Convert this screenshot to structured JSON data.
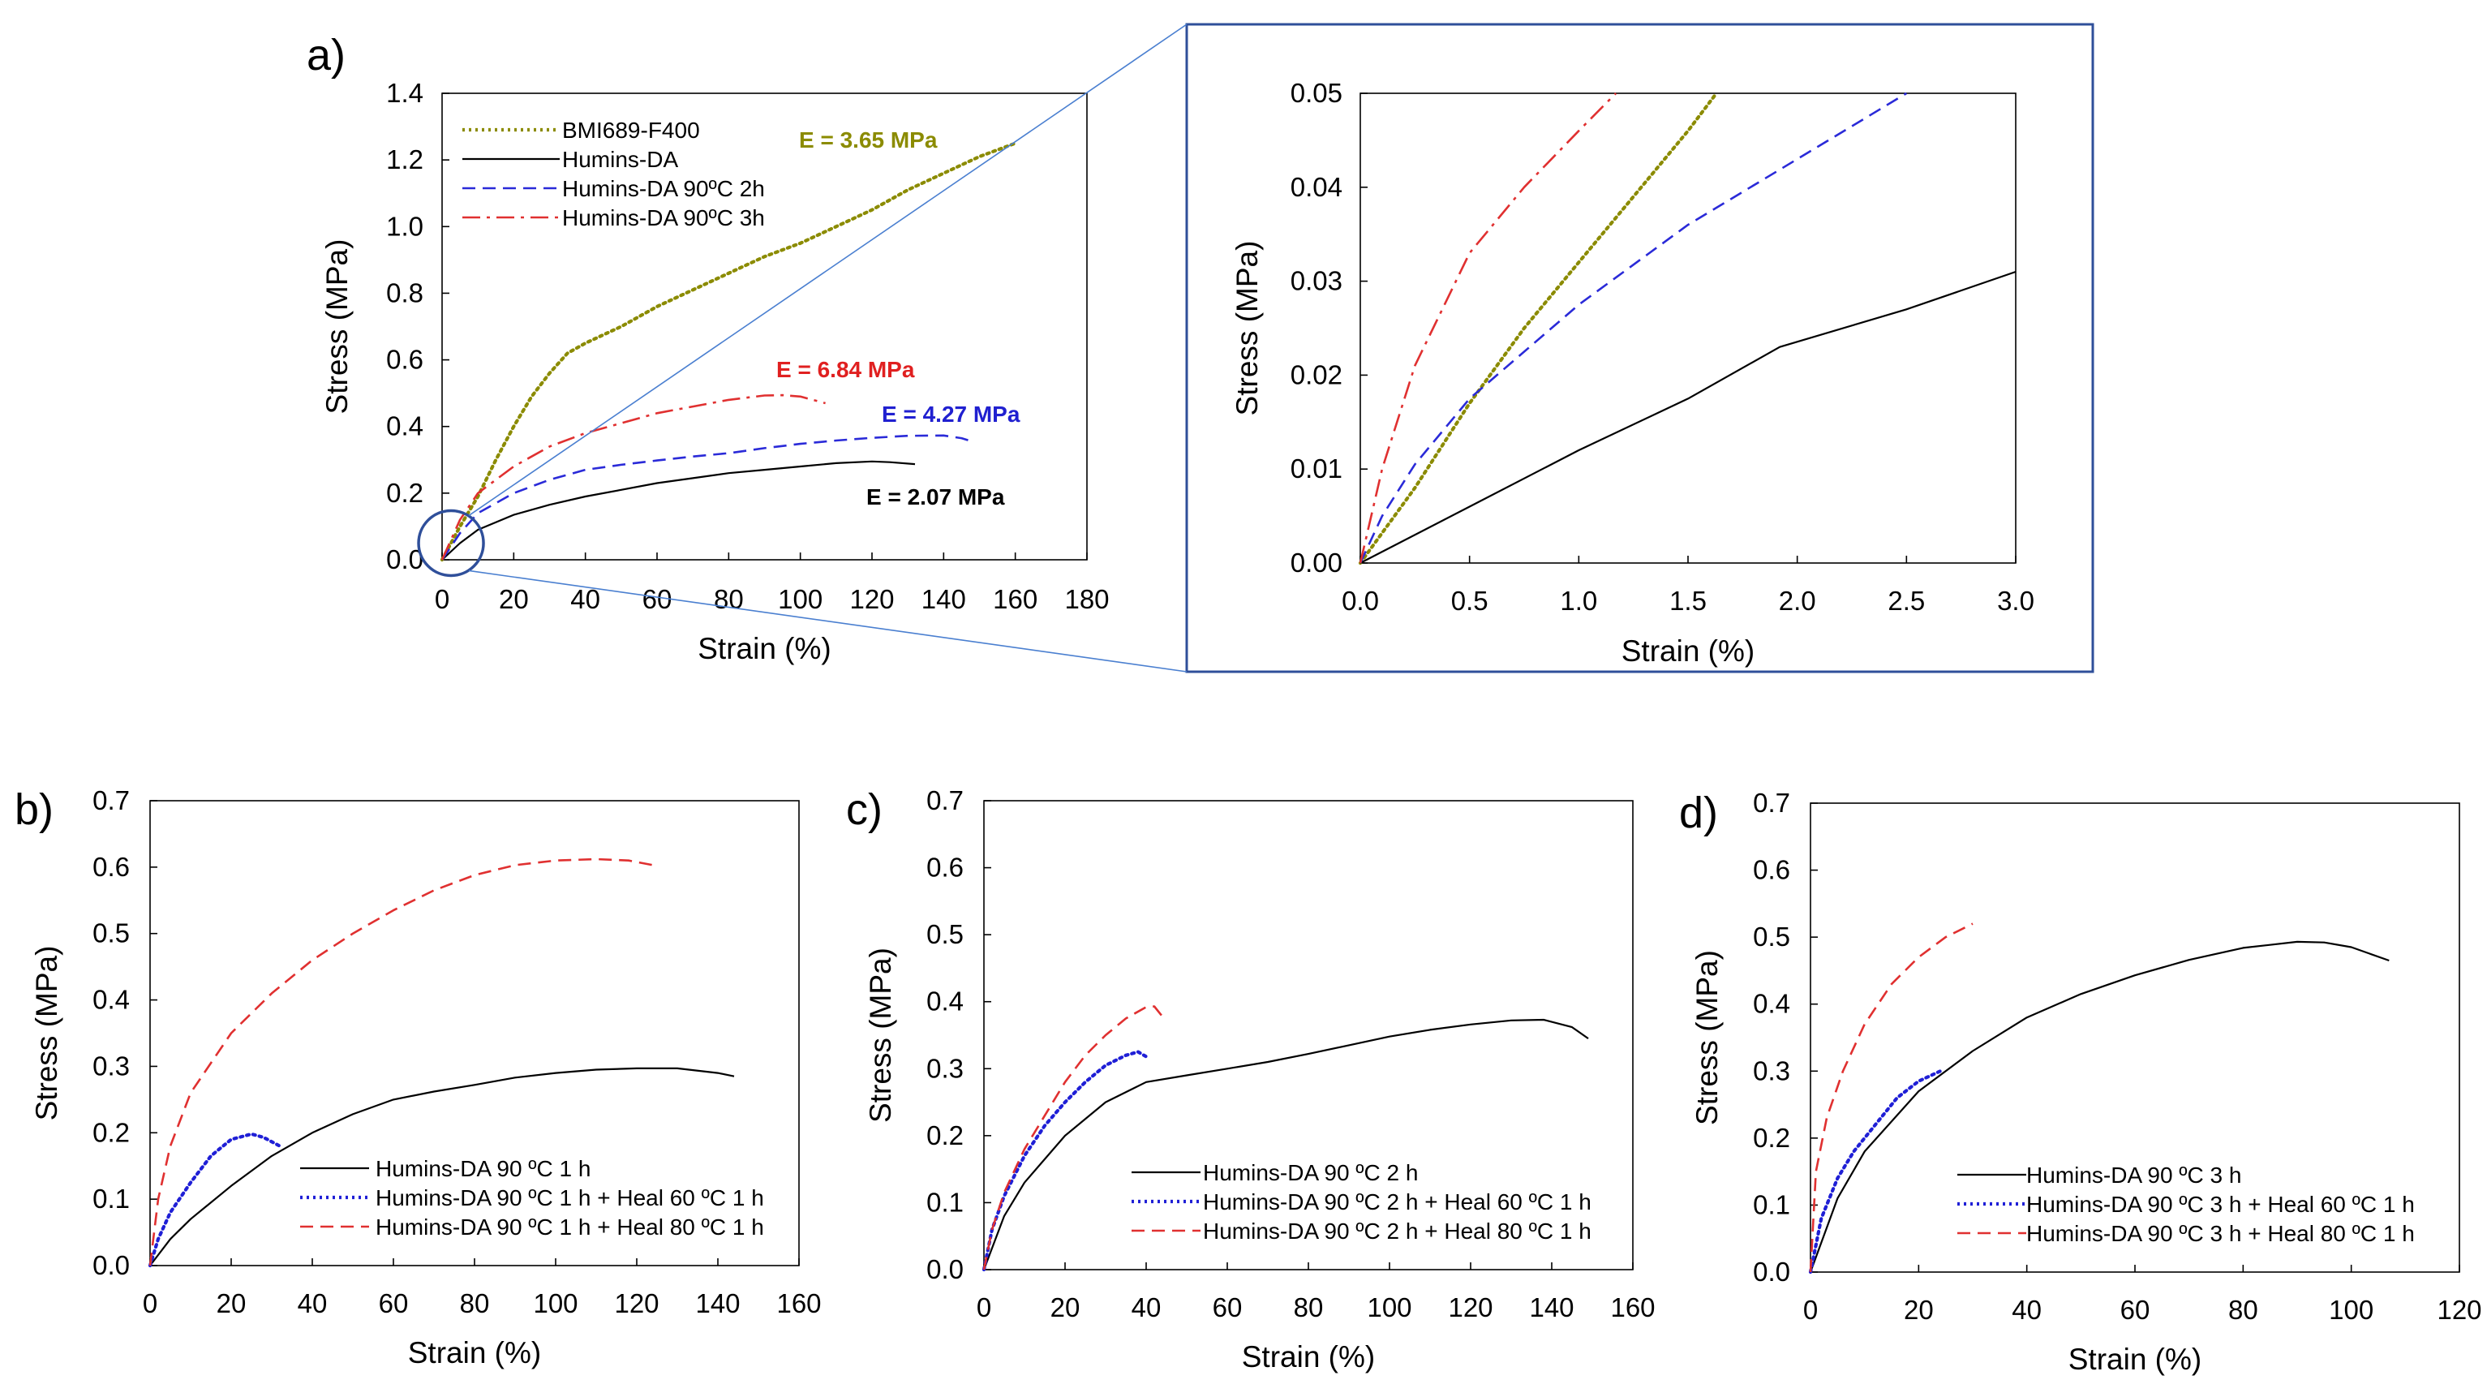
{
  "chart_data": [
    {
      "id": "a_main",
      "type": "line",
      "panel_label": "a)",
      "xlabel": "Strain (%)",
      "ylabel": "Stress (MPa)",
      "xlim": [
        0,
        180
      ],
      "ylim": [
        0,
        1.4
      ],
      "xticks": [
        "0",
        "20",
        "40",
        "60",
        "80",
        "100",
        "120",
        "140",
        "160",
        "180"
      ],
      "yticks": [
        "0.0",
        "0.2",
        "0.4",
        "0.6",
        "0.8",
        "1.0",
        "1.2",
        "1.4"
      ],
      "legend_position": "top-left",
      "series": [
        {
          "name": "BMI689-F400",
          "color": "#8b8b00",
          "style": "dotted",
          "x": [
            0,
            5,
            10,
            15,
            20,
            25,
            30,
            35,
            40,
            50,
            60,
            70,
            80,
            90,
            100,
            110,
            120,
            130,
            140,
            150,
            160
          ],
          "y": [
            0,
            0.1,
            0.19,
            0.3,
            0.4,
            0.49,
            0.56,
            0.62,
            0.65,
            0.7,
            0.76,
            0.81,
            0.86,
            0.91,
            0.95,
            1.0,
            1.05,
            1.11,
            1.16,
            1.21,
            1.25
          ]
        },
        {
          "name": "Humins-DA",
          "color": "#000000",
          "style": "solid",
          "x": [
            0,
            5,
            10,
            20,
            30,
            40,
            50,
            60,
            70,
            80,
            90,
            100,
            110,
            120,
            125,
            132
          ],
          "y": [
            0,
            0.05,
            0.09,
            0.135,
            0.165,
            0.19,
            0.21,
            0.23,
            0.245,
            0.26,
            0.27,
            0.28,
            0.29,
            0.295,
            0.293,
            0.287
          ]
        },
        {
          "name": "Humins-DA 90ºC 2h",
          "color": "#2a2ad8",
          "style": "dashed",
          "x": [
            0,
            5,
            10,
            20,
            30,
            40,
            50,
            60,
            70,
            80,
            90,
            100,
            110,
            120,
            130,
            140,
            145,
            148
          ],
          "y": [
            0,
            0.08,
            0.14,
            0.2,
            0.24,
            0.27,
            0.285,
            0.298,
            0.31,
            0.32,
            0.335,
            0.348,
            0.358,
            0.366,
            0.372,
            0.373,
            0.365,
            0.355
          ]
        },
        {
          "name": "Humins-DA 90ºC 3h",
          "color": "#e03030",
          "style": "dashdot",
          "x": [
            0,
            5,
            10,
            20,
            30,
            40,
            50,
            60,
            70,
            80,
            90,
            95,
            100,
            107
          ],
          "y": [
            0,
            0.12,
            0.2,
            0.28,
            0.34,
            0.38,
            0.41,
            0.44,
            0.46,
            0.48,
            0.493,
            0.494,
            0.49,
            0.47
          ]
        }
      ],
      "annotations": [
        {
          "text": "E = 3.65 MPa",
          "color": "#8b8b00"
        },
        {
          "text": "E = 6.84 MPa",
          "color": "#e02020"
        },
        {
          "text": "E = 4.27 MPa",
          "color": "#2020d0"
        },
        {
          "text": "E = 2.07 MPa",
          "color": "#000000"
        }
      ]
    },
    {
      "id": "a_inset",
      "type": "line",
      "panel_label": "",
      "xlabel": "Strain (%)",
      "ylabel": "Stress (MPa)",
      "xlim": [
        0,
        3
      ],
      "ylim": [
        0,
        0.05
      ],
      "xticks": [
        "0.0",
        "0.5",
        "1.0",
        "1.5",
        "2.0",
        "2.5",
        "3.0"
      ],
      "yticks": [
        "0.00",
        "0.01",
        "0.02",
        "0.03",
        "0.04",
        "0.05"
      ],
      "series": [
        {
          "name": "BMI689-F400",
          "color": "#8b8b00",
          "style": "dotted",
          "x": [
            0,
            0.25,
            0.5,
            0.75,
            1.0,
            1.25,
            1.5,
            1.63
          ],
          "y": [
            0,
            0.008,
            0.017,
            0.025,
            0.032,
            0.039,
            0.046,
            0.05
          ]
        },
        {
          "name": "Humins-DA",
          "color": "#000000",
          "style": "solid",
          "x": [
            0,
            0.5,
            1.0,
            1.5,
            1.92,
            2.5,
            3.0
          ],
          "y": [
            0,
            0.006,
            0.012,
            0.0175,
            0.023,
            0.027,
            0.031
          ]
        },
        {
          "name": "Humins-DA 90ºC 2h",
          "color": "#2a2ad8",
          "style": "dashed",
          "x": [
            0,
            0.1,
            0.25,
            0.5,
            1.0,
            1.5,
            2.0,
            2.5
          ],
          "y": [
            0,
            0.005,
            0.0105,
            0.0175,
            0.0275,
            0.036,
            0.043,
            0.05
          ]
        },
        {
          "name": "Humins-DA 90ºC 3h",
          "color": "#e03030",
          "style": "dashdot",
          "x": [
            0,
            0.1,
            0.25,
            0.5,
            0.75,
            1.0,
            1.17
          ],
          "y": [
            0,
            0.01,
            0.021,
            0.033,
            0.04,
            0.046,
            0.05
          ]
        }
      ]
    },
    {
      "id": "b",
      "type": "line",
      "panel_label": "b)",
      "xlabel": "Strain (%)",
      "ylabel": "Stress (MPa)",
      "xlim": [
        0,
        160
      ],
      "ylim": [
        0,
        0.7
      ],
      "xticks": [
        "0",
        "20",
        "40",
        "60",
        "80",
        "100",
        "120",
        "140",
        "160"
      ],
      "yticks": [
        "0.0",
        "0.1",
        "0.2",
        "0.3",
        "0.4",
        "0.5",
        "0.6",
        "0.7"
      ],
      "legend_position": "bottom-right",
      "series": [
        {
          "name": "Humins-DA 90 ºC 1 h",
          "color": "#000000",
          "style": "solid",
          "x": [
            0,
            5,
            10,
            20,
            30,
            40,
            50,
            60,
            70,
            80,
            90,
            100,
            110,
            120,
            130,
            140,
            144
          ],
          "y": [
            0,
            0.04,
            0.07,
            0.12,
            0.165,
            0.2,
            0.228,
            0.25,
            0.262,
            0.272,
            0.283,
            0.29,
            0.295,
            0.297,
            0.297,
            0.29,
            0.285
          ]
        },
        {
          "name": "Humins-DA 90 ºC 1 h + Heal 60 ºC 1 h",
          "color": "#1f1fd6",
          "style": "dotted",
          "x": [
            0,
            2,
            5,
            10,
            15,
            20,
            25,
            28,
            32
          ],
          "y": [
            0,
            0.04,
            0.08,
            0.125,
            0.165,
            0.19,
            0.198,
            0.193,
            0.18
          ]
        },
        {
          "name": "Humins-DA 90 ºC 1 h + Heal 80 ºC 1 h",
          "color": "#e03030",
          "style": "dashed",
          "x": [
            0,
            2,
            5,
            10,
            20,
            30,
            40,
            50,
            60,
            70,
            80,
            90,
            100,
            110,
            118,
            124
          ],
          "y": [
            0,
            0.1,
            0.18,
            0.26,
            0.35,
            0.41,
            0.46,
            0.5,
            0.535,
            0.565,
            0.588,
            0.603,
            0.61,
            0.612,
            0.61,
            0.603
          ]
        }
      ]
    },
    {
      "id": "c",
      "type": "line",
      "panel_label": "c)",
      "xlabel": "Strain (%)",
      "ylabel": "Stress (MPa)",
      "xlim": [
        0,
        160
      ],
      "ylim": [
        0,
        0.7
      ],
      "xticks": [
        "0",
        "20",
        "40",
        "60",
        "80",
        "100",
        "120",
        "140",
        "160"
      ],
      "yticks": [
        "0.0",
        "0.1",
        "0.2",
        "0.3",
        "0.4",
        "0.5",
        "0.6",
        "0.7"
      ],
      "legend_position": "bottom-right",
      "series": [
        {
          "name": "Humins-DA 90 ºC 2 h",
          "color": "#000000",
          "style": "solid",
          "x": [
            0,
            5,
            10,
            20,
            30,
            40,
            50,
            60,
            70,
            80,
            90,
            100,
            110,
            120,
            130,
            138,
            145,
            149
          ],
          "y": [
            0,
            0.08,
            0.13,
            0.2,
            0.25,
            0.28,
            0.29,
            0.3,
            0.31,
            0.322,
            0.335,
            0.348,
            0.358,
            0.366,
            0.372,
            0.373,
            0.362,
            0.345
          ]
        },
        {
          "name": "Humins-DA 90 ºC 2 h + Heal 60 ºC 1 h",
          "color": "#1f1fd6",
          "style": "dotted",
          "x": [
            0,
            2,
            5,
            10,
            15,
            20,
            25,
            30,
            35,
            38,
            40
          ],
          "y": [
            0,
            0.06,
            0.11,
            0.17,
            0.215,
            0.25,
            0.28,
            0.305,
            0.32,
            0.325,
            0.318
          ]
        },
        {
          "name": "Humins-DA 90 ºC 2 h + Heal 80 ºC 1 h",
          "color": "#e03030",
          "style": "dashed",
          "x": [
            0,
            2,
            5,
            10,
            15,
            20,
            25,
            30,
            35,
            40,
            42,
            44
          ],
          "y": [
            0,
            0.06,
            0.115,
            0.18,
            0.23,
            0.28,
            0.32,
            0.35,
            0.375,
            0.392,
            0.393,
            0.378
          ]
        }
      ]
    },
    {
      "id": "d",
      "type": "line",
      "panel_label": "d)",
      "xlabel": "Strain (%)",
      "ylabel": "Stress (MPa)",
      "xlim": [
        0,
        120
      ],
      "ylim": [
        0,
        0.7
      ],
      "xticks": [
        "0",
        "20",
        "40",
        "60",
        "80",
        "100",
        "120"
      ],
      "yticks": [
        "0.0",
        "0.1",
        "0.2",
        "0.3",
        "0.4",
        "0.5",
        "0.6",
        "0.7"
      ],
      "legend_position": "bottom-right",
      "series": [
        {
          "name": "Humins-DA 90 ºC 3 h",
          "color": "#000000",
          "style": "solid",
          "x": [
            0,
            5,
            10,
            20,
            30,
            40,
            50,
            60,
            70,
            80,
            90,
            95,
            100,
            107
          ],
          "y": [
            0,
            0.11,
            0.18,
            0.27,
            0.33,
            0.38,
            0.415,
            0.443,
            0.466,
            0.484,
            0.493,
            0.492,
            0.485,
            0.465
          ]
        },
        {
          "name": "Humins-DA 90 ºC 3 h + Heal 60 ºC 1 h",
          "color": "#1f1fd6",
          "style": "dotted",
          "x": [
            0,
            2,
            5,
            8,
            12,
            16,
            20,
            24
          ],
          "y": [
            0,
            0.08,
            0.14,
            0.18,
            0.22,
            0.26,
            0.285,
            0.3
          ]
        },
        {
          "name": "Humins-DA 90 ºC 3 h + Heal 80 ºC 1 h",
          "color": "#e03030",
          "style": "dashed",
          "x": [
            0,
            1,
            3,
            6,
            10,
            15,
            20,
            25,
            30
          ],
          "y": [
            0,
            0.15,
            0.23,
            0.3,
            0.37,
            0.43,
            0.47,
            0.5,
            0.52
          ]
        }
      ]
    }
  ]
}
